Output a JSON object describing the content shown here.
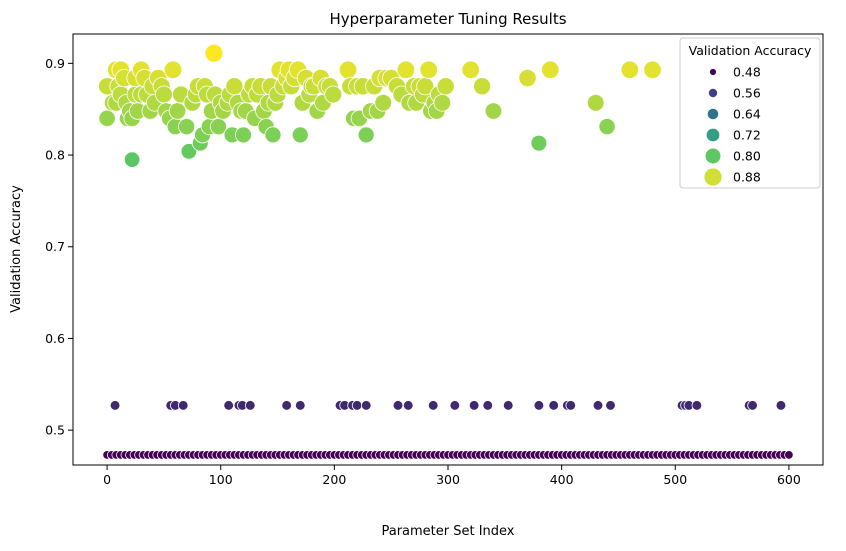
{
  "chart_data": {
    "type": "scatter",
    "title": "Hyperparameter Tuning Results",
    "xlabel": "Parameter Set Index",
    "ylabel": "Validation Accuracy",
    "xlim": [
      -30,
      630
    ],
    "ylim": [
      0.462,
      0.932
    ],
    "xticks": [
      0,
      100,
      200,
      300,
      400,
      500,
      600
    ],
    "yticks": [
      0.5,
      0.6,
      0.7,
      0.8,
      0.9
    ],
    "xtick_labels": [
      "0",
      "100",
      "200",
      "300",
      "400",
      "500",
      "600"
    ],
    "ytick_labels": [
      "0.5",
      "0.6",
      "0.7",
      "0.8",
      "0.9"
    ],
    "grid": false,
    "color_map": "viridis",
    "legend": {
      "title": "Validation Accuracy",
      "location": "top-right",
      "entries": [
        {
          "label": "0.48",
          "value": 0.48
        },
        {
          "label": "0.56",
          "value": 0.56
        },
        {
          "label": "0.64",
          "value": 0.64
        },
        {
          "label": "0.72",
          "value": 0.72
        },
        {
          "label": "0.80",
          "value": 0.8
        },
        {
          "label": "0.88",
          "value": 0.88
        }
      ]
    },
    "series": [
      {
        "group": "high",
        "points": [
          [
            0,
            0.84
          ],
          [
            0,
            0.875
          ],
          [
            5,
            0.857
          ],
          [
            8,
            0.857
          ],
          [
            8,
            0.893
          ],
          [
            10,
            0.875
          ],
          [
            12,
            0.866
          ],
          [
            12,
            0.893
          ],
          [
            15,
            0.884
          ],
          [
            17,
            0.857
          ],
          [
            18,
            0.84
          ],
          [
            20,
            0.848
          ],
          [
            22,
            0.795
          ],
          [
            22,
            0.84
          ],
          [
            25,
            0.866
          ],
          [
            25,
            0.884
          ],
          [
            27,
            0.848
          ],
          [
            30,
            0.893
          ],
          [
            30,
            0.866
          ],
          [
            33,
            0.884
          ],
          [
            35,
            0.866
          ],
          [
            38,
            0.848
          ],
          [
            40,
            0.875
          ],
          [
            42,
            0.857
          ],
          [
            45,
            0.884
          ],
          [
            48,
            0.875
          ],
          [
            50,
            0.866
          ],
          [
            52,
            0.848
          ],
          [
            55,
            0.84
          ],
          [
            58,
            0.893
          ],
          [
            60,
            0.831
          ],
          [
            62,
            0.848
          ],
          [
            65,
            0.866
          ],
          [
            70,
            0.831
          ],
          [
            72,
            0.804
          ],
          [
            75,
            0.857
          ],
          [
            78,
            0.866
          ],
          [
            80,
            0.875
          ],
          [
            82,
            0.813
          ],
          [
            84,
            0.822
          ],
          [
            86,
            0.875
          ],
          [
            88,
            0.866
          ],
          [
            90,
            0.831
          ],
          [
            92,
            0.848
          ],
          [
            94,
            0.911
          ],
          [
            95,
            0.866
          ],
          [
            98,
            0.831
          ],
          [
            100,
            0.857
          ],
          [
            102,
            0.848
          ],
          [
            106,
            0.857
          ],
          [
            108,
            0.866
          ],
          [
            110,
            0.822
          ],
          [
            112,
            0.875
          ],
          [
            115,
            0.857
          ],
          [
            118,
            0.848
          ],
          [
            120,
            0.822
          ],
          [
            122,
            0.848
          ],
          [
            125,
            0.866
          ],
          [
            128,
            0.875
          ],
          [
            130,
            0.84
          ],
          [
            132,
            0.866
          ],
          [
            135,
            0.875
          ],
          [
            138,
            0.848
          ],
          [
            140,
            0.831
          ],
          [
            142,
            0.857
          ],
          [
            144,
            0.875
          ],
          [
            146,
            0.822
          ],
          [
            148,
            0.857
          ],
          [
            150,
            0.866
          ],
          [
            152,
            0.893
          ],
          [
            155,
            0.875
          ],
          [
            158,
            0.884
          ],
          [
            160,
            0.893
          ],
          [
            162,
            0.875
          ],
          [
            165,
            0.884
          ],
          [
            168,
            0.893
          ],
          [
            170,
            0.822
          ],
          [
            172,
            0.857
          ],
          [
            175,
            0.884
          ],
          [
            178,
            0.866
          ],
          [
            180,
            0.875
          ],
          [
            182,
            0.875
          ],
          [
            185,
            0.848
          ],
          [
            188,
            0.884
          ],
          [
            190,
            0.857
          ],
          [
            193,
            0.875
          ],
          [
            196,
            0.875
          ],
          [
            199,
            0.866
          ],
          [
            212,
            0.893
          ],
          [
            214,
            0.875
          ],
          [
            217,
            0.84
          ],
          [
            220,
            0.875
          ],
          [
            222,
            0.84
          ],
          [
            225,
            0.875
          ],
          [
            228,
            0.822
          ],
          [
            232,
            0.848
          ],
          [
            235,
            0.875
          ],
          [
            238,
            0.848
          ],
          [
            240,
            0.884
          ],
          [
            243,
            0.857
          ],
          [
            246,
            0.884
          ],
          [
            250,
            0.884
          ],
          [
            255,
            0.875
          ],
          [
            259,
            0.866
          ],
          [
            263,
            0.893
          ],
          [
            266,
            0.857
          ],
          [
            270,
            0.875
          ],
          [
            272,
            0.857
          ],
          [
            275,
            0.875
          ],
          [
            278,
            0.866
          ],
          [
            280,
            0.875
          ],
          [
            283,
            0.893
          ],
          [
            285,
            0.848
          ],
          [
            288,
            0.857
          ],
          [
            290,
            0.848
          ],
          [
            292,
            0.866
          ],
          [
            295,
            0.857
          ],
          [
            298,
            0.875
          ],
          [
            320,
            0.893
          ],
          [
            330,
            0.875
          ],
          [
            340,
            0.848
          ],
          [
            370,
            0.884
          ],
          [
            380,
            0.813
          ],
          [
            390,
            0.893
          ],
          [
            430,
            0.857
          ],
          [
            440,
            0.831
          ],
          [
            460,
            0.893
          ],
          [
            480,
            0.893
          ]
        ]
      },
      {
        "group": "mid",
        "value": 0.527,
        "x": [
          7,
          56,
          60,
          67,
          107,
          116,
          119,
          126,
          158,
          170,
          205,
          209,
          216,
          220,
          228,
          256,
          265,
          287,
          306,
          323,
          335,
          353,
          380,
          393,
          405,
          408,
          432,
          443,
          506,
          509,
          512,
          519,
          565,
          568,
          593
        ]
      },
      {
        "group": "low",
        "value": 0.473,
        "x_step": 4,
        "x_max": 600
      }
    ]
  }
}
